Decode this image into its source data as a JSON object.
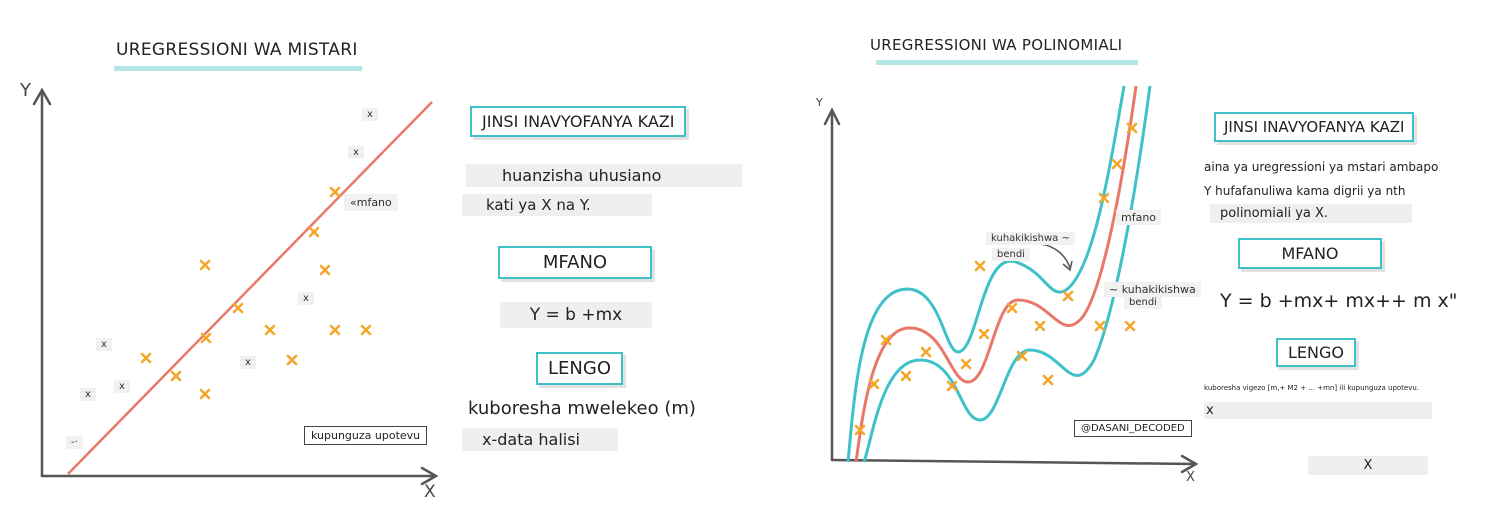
{
  "linear": {
    "title": "UREGRESSIONI WA MISTARI",
    "axis_y": "Y",
    "axis_x": "X",
    "annotation_example": "«mfano",
    "annotation_loss": "kupunguza upotevu",
    "small_marks": [
      "x",
      "x",
      "x",
      "x",
      "x",
      "x",
      "x",
      "x",
      "-·"
    ],
    "how_title": "JINSI INAVYOFANYA KAZI",
    "how_line1": "huanzisha uhusiano",
    "how_line2": "kati ya X na Y.",
    "example_title": "MFANO",
    "equation": "Y = b +mx",
    "goal_title": "LENGO",
    "goal_line1": "kuboresha mwelekeo (m)",
    "goal_line2": "x-data halisi"
  },
  "polynomial": {
    "title": "UREGRESSIONI WA POLINOMIALI",
    "axis_y": "Y",
    "axis_x": "X",
    "annotation_example": "mfano",
    "annotation_band1_a": "kuhakikishwa ~",
    "annotation_band1_b": "bendi",
    "annotation_band2_a": "~ kuhakikishwa",
    "annotation_band2_b": "bendi",
    "watermark": "@DASANI_DECODED",
    "how_title": "JINSI INAVYOFANYA KAZI",
    "how_line1": "aina ya uregressioni ya mstari ambapo",
    "how_line2": "Y hufafanuliwa kama digrii ya nth",
    "how_line3": "polinomiali ya X.",
    "example_title": "MFANO",
    "equation": "Y = b +mx+ mx++ m x\"",
    "goal_title": "LENGO",
    "goal_line1": "kuboresha vigezo [m,+ M2 + ... +mn] ili kupunguza upotevu.",
    "goal_line2": "x",
    "goal_line3": "X"
  },
  "colors": {
    "axis": "#555555",
    "fit_line": "#e8796a",
    "band": "#3fc1c9",
    "point": "#f4a62a",
    "accent": "#3fc1c9"
  }
}
